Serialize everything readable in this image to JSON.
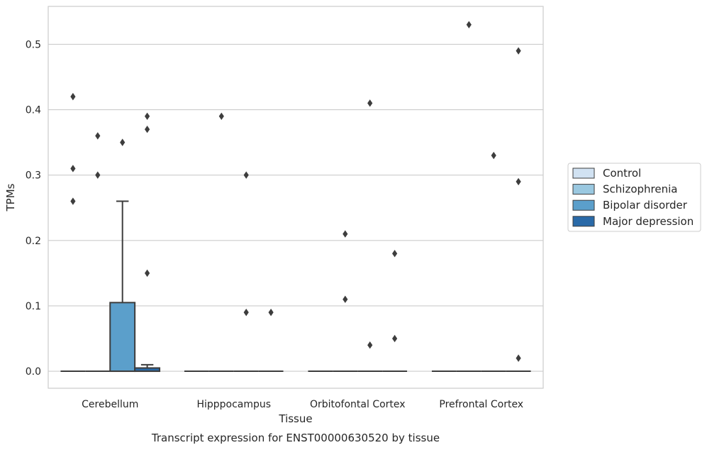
{
  "chart_data": {
    "type": "boxplot",
    "title": "",
    "caption": "Transcript expression for ENST00000630520 by tissue",
    "xlabel": "Tissue",
    "ylabel": "TPMs",
    "ylim": [
      -0.026,
      0.558
    ],
    "yticks": [
      0.0,
      0.1,
      0.2,
      0.3,
      0.4,
      0.5
    ],
    "ytick_labels": [
      "0.0",
      "0.1",
      "0.2",
      "0.3",
      "0.4",
      "0.5"
    ],
    "categories": [
      "Cerebellum",
      "Hipppocampus",
      "Orbitofontal Cortex",
      "Prefrontal Cortex"
    ],
    "grid": "horizontal",
    "legend_position": "right",
    "series": [
      {
        "name": "Control",
        "color": "#d1e2f2",
        "boxes": [
          {
            "q1": 0,
            "median": 0,
            "q3": 0,
            "whisker_low": 0,
            "whisker_high": 0,
            "outliers": [
              0.42,
              0.31,
              0.26
            ]
          },
          {
            "q1": 0,
            "median": 0,
            "q3": 0,
            "whisker_low": 0,
            "whisker_high": 0,
            "outliers": []
          },
          {
            "q1": 0,
            "median": 0,
            "q3": 0,
            "whisker_low": 0,
            "whisker_high": 0,
            "outliers": []
          },
          {
            "q1": 0,
            "median": 0,
            "q3": 0,
            "whisker_low": 0,
            "whisker_high": 0,
            "outliers": []
          }
        ]
      },
      {
        "name": "Schizophrenia",
        "color": "#9ac8e0",
        "boxes": [
          {
            "q1": 0,
            "median": 0,
            "q3": 0,
            "whisker_low": 0,
            "whisker_high": 0,
            "outliers": [
              0.36,
              0.3
            ]
          },
          {
            "q1": 0,
            "median": 0,
            "q3": 0,
            "whisker_low": 0,
            "whisker_high": 0,
            "outliers": [
              0.39
            ]
          },
          {
            "q1": 0,
            "median": 0,
            "q3": 0,
            "whisker_low": 0,
            "whisker_high": 0,
            "outliers": [
              0.21,
              0.11
            ]
          },
          {
            "q1": 0,
            "median": 0,
            "q3": 0,
            "whisker_low": 0,
            "whisker_high": 0,
            "outliers": [
              0.53
            ]
          }
        ]
      },
      {
        "name": "Bipolar disorder",
        "color": "#5b9fcb",
        "boxes": [
          {
            "q1": 0,
            "median": 0,
            "q3": 0.105,
            "whisker_low": 0,
            "whisker_high": 0.26,
            "outliers": [
              0.35
            ]
          },
          {
            "q1": 0,
            "median": 0,
            "q3": 0,
            "whisker_low": 0,
            "whisker_high": 0,
            "outliers": [
              0.3,
              0.09
            ]
          },
          {
            "q1": 0,
            "median": 0,
            "q3": 0,
            "whisker_low": 0,
            "whisker_high": 0,
            "outliers": [
              0.41,
              0.04
            ]
          },
          {
            "q1": 0,
            "median": 0,
            "q3": 0,
            "whisker_low": 0,
            "whisker_high": 0,
            "outliers": [
              0.33
            ]
          }
        ]
      },
      {
        "name": "Major depression",
        "color": "#2a6aa8",
        "boxes": [
          {
            "q1": 0,
            "median": 0,
            "q3": 0.005,
            "whisker_low": 0,
            "whisker_high": 0.01,
            "outliers": [
              0.39,
              0.37,
              0.15
            ]
          },
          {
            "q1": 0,
            "median": 0,
            "q3": 0,
            "whisker_low": 0,
            "whisker_high": 0,
            "outliers": [
              0.09
            ]
          },
          {
            "q1": 0,
            "median": 0,
            "q3": 0,
            "whisker_low": 0,
            "whisker_high": 0,
            "outliers": [
              0.18,
              0.05
            ]
          },
          {
            "q1": 0,
            "median": 0,
            "q3": 0,
            "whisker_low": 0,
            "whisker_high": 0,
            "outliers": [
              0.49,
              0.29,
              0.02
            ]
          }
        ]
      }
    ]
  }
}
